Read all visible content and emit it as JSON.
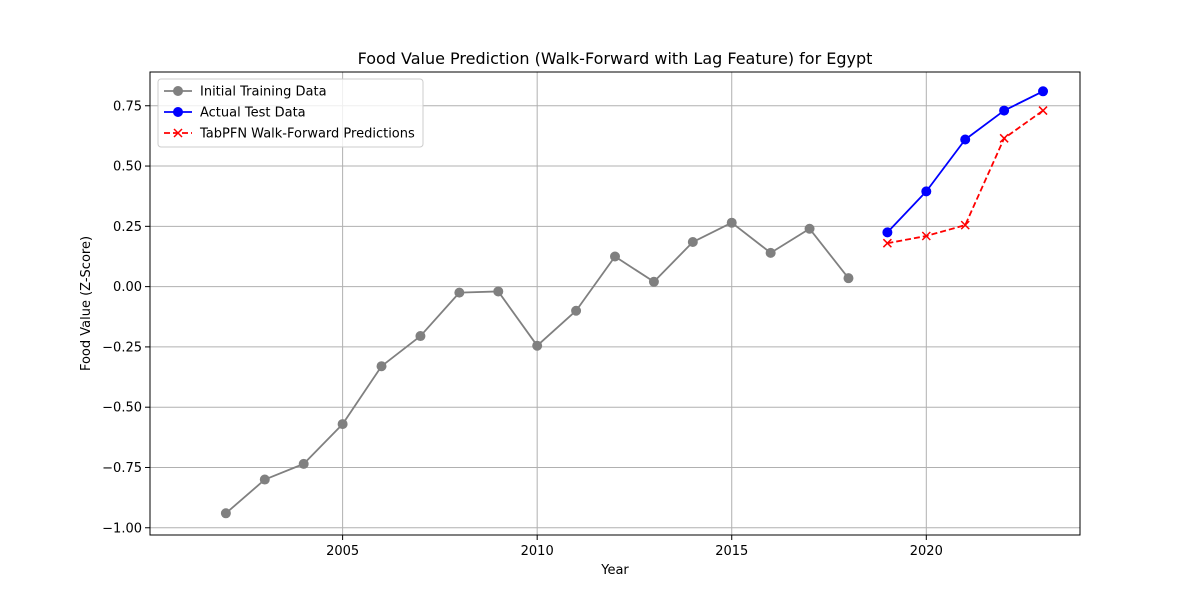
{
  "chart_data": {
    "type": "line",
    "title": "Food Value Prediction (Walk-Forward with Lag Feature) for Egypt",
    "xlabel": "Year",
    "ylabel": "Food Value (Z-Score)",
    "xlim": [
      2000.05,
      2023.95
    ],
    "ylim": [
      -1.03,
      0.89
    ],
    "x_ticks": [
      2005,
      2010,
      2015,
      2020
    ],
    "y_ticks": [
      -1.0,
      -0.75,
      -0.5,
      -0.25,
      0.0,
      0.25,
      0.5,
      0.75
    ],
    "y_tick_labels": [
      "−1.00",
      "−0.75",
      "−0.50",
      "−0.25",
      "0.00",
      "0.25",
      "0.50",
      "0.75"
    ],
    "grid": true,
    "legend_position": "top-left",
    "series": [
      {
        "name": "Initial Training Data",
        "color": "#808080",
        "marker": "circle",
        "line_style": "solid",
        "x": [
          2002,
          2003,
          2004,
          2005,
          2006,
          2007,
          2008,
          2009,
          2010,
          2011,
          2012,
          2013,
          2014,
          2015,
          2016,
          2017,
          2018
        ],
        "y": [
          -0.94,
          -0.8,
          -0.735,
          -0.57,
          -0.33,
          -0.205,
          -0.025,
          -0.02,
          -0.245,
          -0.1,
          0.125,
          0.02,
          0.185,
          0.265,
          0.14,
          0.24,
          0.035
        ]
      },
      {
        "name": "Actual Test Data",
        "color": "#0000ff",
        "marker": "circle",
        "line_style": "solid",
        "x": [
          2019,
          2020,
          2021,
          2022,
          2023
        ],
        "y": [
          0.225,
          0.395,
          0.61,
          0.73,
          0.81
        ]
      },
      {
        "name": "TabPFN Walk-Forward Predictions",
        "color": "#ff0000",
        "marker": "x",
        "line_style": "dashed",
        "x": [
          2019,
          2020,
          2021,
          2022,
          2023
        ],
        "y": [
          0.18,
          0.21,
          0.255,
          0.615,
          0.73
        ]
      }
    ]
  }
}
